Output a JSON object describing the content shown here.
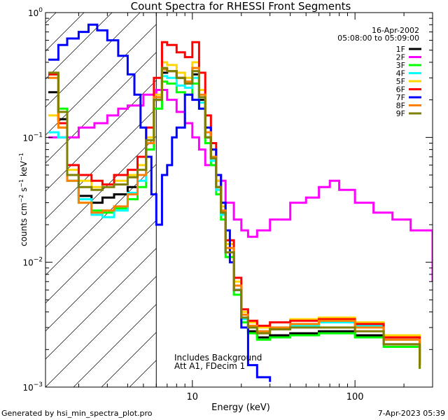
{
  "chart_data": {
    "type": "line",
    "title": "Count Spectra for RHESSI Front Segments",
    "xlabel": "Energy (keV)",
    "ylabel_parts": {
      "base": "counts cm",
      "exp1": "−2",
      "mid": " s",
      "exp2": "−1",
      "tail": " keV",
      "exp3": "−1"
    },
    "x_scale": "log",
    "y_scale": "log",
    "xlim": [
      1.25,
      300
    ],
    "ylim": [
      0.001,
      1.0
    ],
    "x_ticks": [
      {
        "v": 10,
        "label": "10"
      },
      {
        "v": 100,
        "label": "100"
      }
    ],
    "y_ticks": [
      {
        "v": 1.0,
        "mant": "10",
        "exp": "0"
      },
      {
        "v": 0.1,
        "mant": "10",
        "exp": "−1"
      },
      {
        "v": 0.01,
        "mant": "10",
        "exp": "−2"
      },
      {
        "v": 0.001,
        "mant": "10",
        "exp": "−3"
      }
    ],
    "shaded_region": {
      "x_min": 1.25,
      "x_max": 6.0,
      "pattern": "diagonal-hatch"
    },
    "date": "16-Apr-2002",
    "time_range": "05:08:00 to 05:09:00",
    "notes": [
      "Includes Background",
      "Att A1, FDecim  1"
    ],
    "footer_left": "Generated by hsi_min_spectra_plot.pro",
    "footer_right": "7-Apr-2023 05:39",
    "series": [
      {
        "name": "1F",
        "color": "#000000",
        "x": [
          1.3,
          1.5,
          1.7,
          2.0,
          2.4,
          2.8,
          3.3,
          4.0,
          4.6,
          5.2,
          5.8,
          6.5,
          7.0,
          8.0,
          9.0,
          10.0,
          11.0,
          12.0,
          13.0,
          14.0,
          15.0,
          16.0,
          18.0,
          20.0,
          22.0,
          25.0,
          30.0,
          40.0,
          60.0,
          100.0,
          150.0,
          250.0
        ],
        "y": [
          0.23,
          0.14,
          0.05,
          0.034,
          0.03,
          0.033,
          0.035,
          0.04,
          0.05,
          0.09,
          0.2,
          0.33,
          0.34,
          0.3,
          0.28,
          0.32,
          0.2,
          0.1,
          0.07,
          0.04,
          0.025,
          0.012,
          0.006,
          0.0035,
          0.0028,
          0.0025,
          0.0026,
          0.0027,
          0.0028,
          0.0026,
          0.0022,
          0.0015
        ]
      },
      {
        "name": "2F",
        "color": "#ff00ff",
        "x": [
          1.3,
          1.5,
          2.0,
          2.5,
          3.0,
          3.5,
          4.0,
          5.0,
          6.0,
          7.0,
          8.0,
          9.0,
          10.0,
          11.0,
          12.0,
          14.0,
          16.0,
          18.0,
          20.0,
          22.0,
          25.0,
          30.0,
          40.0,
          50.0,
          60.0,
          70.0,
          80.0,
          100.0,
          130.0,
          170.0,
          220.0,
          300.0
        ],
        "y": [
          0.1,
          0.1,
          0.12,
          0.13,
          0.15,
          0.17,
          0.18,
          0.22,
          0.24,
          0.2,
          0.16,
          0.13,
          0.1,
          0.08,
          0.06,
          0.045,
          0.03,
          0.022,
          0.018,
          0.016,
          0.018,
          0.022,
          0.03,
          0.033,
          0.04,
          0.045,
          0.038,
          0.03,
          0.025,
          0.022,
          0.018,
          0.007
        ]
      },
      {
        "name": "3F",
        "color": "#00ff00",
        "x": [
          1.3,
          1.5,
          1.7,
          2.0,
          2.4,
          2.8,
          3.3,
          4.0,
          4.6,
          5.2,
          5.8,
          6.5,
          7.0,
          8.0,
          9.0,
          10.0,
          11.0,
          12.0,
          13.0,
          14.0,
          15.0,
          16.0,
          18.0,
          20.0,
          22.0,
          25.0,
          30.0,
          40.0,
          60.0,
          100.0,
          150.0,
          250.0
        ],
        "y": [
          0.32,
          0.17,
          0.045,
          0.03,
          0.026,
          0.025,
          0.027,
          0.032,
          0.04,
          0.08,
          0.17,
          0.28,
          0.27,
          0.23,
          0.22,
          0.27,
          0.17,
          0.09,
          0.06,
          0.035,
          0.022,
          0.011,
          0.0055,
          0.0033,
          0.0027,
          0.0024,
          0.0025,
          0.0026,
          0.0027,
          0.0025,
          0.0021,
          0.0014
        ]
      },
      {
        "name": "4F",
        "color": "#00ffff",
        "x": [
          1.3,
          1.5,
          1.7,
          2.0,
          2.4,
          2.8,
          3.3,
          4.0,
          4.6,
          5.2,
          5.8,
          6.5,
          7.0,
          8.0,
          9.0,
          10.0,
          11.0,
          12.0,
          13.0,
          14.0,
          15.0,
          16.0,
          18.0,
          20.0,
          22.0,
          25.0,
          30.0,
          40.0,
          60.0,
          100.0,
          150.0,
          250.0
        ],
        "y": [
          0.11,
          0.1,
          0.045,
          0.032,
          0.024,
          0.023,
          0.026,
          0.036,
          0.045,
          0.09,
          0.2,
          0.31,
          0.3,
          0.26,
          0.25,
          0.3,
          0.19,
          0.1,
          0.065,
          0.038,
          0.024,
          0.012,
          0.006,
          0.0035,
          0.003,
          0.0028,
          0.003,
          0.0031,
          0.0033,
          0.0031,
          0.0024,
          0.0016
        ]
      },
      {
        "name": "5F",
        "color": "#ffd700",
        "x": [
          1.3,
          1.5,
          1.7,
          2.0,
          2.4,
          2.8,
          3.3,
          4.0,
          4.6,
          5.2,
          5.8,
          6.5,
          7.0,
          8.0,
          9.0,
          10.0,
          11.0,
          12.0,
          13.0,
          14.0,
          15.0,
          16.0,
          18.0,
          20.0,
          22.0,
          25.0,
          30.0,
          40.0,
          60.0,
          100.0,
          150.0,
          250.0
        ],
        "y": [
          0.15,
          0.12,
          0.055,
          0.045,
          0.04,
          0.042,
          0.045,
          0.05,
          0.06,
          0.1,
          0.22,
          0.4,
          0.38,
          0.33,
          0.3,
          0.4,
          0.24,
          0.12,
          0.08,
          0.045,
          0.028,
          0.014,
          0.007,
          0.004,
          0.0033,
          0.003,
          0.0033,
          0.0035,
          0.0036,
          0.0033,
          0.0026,
          0.0017
        ]
      },
      {
        "name": "6F",
        "color": "#ff0000",
        "x": [
          1.3,
          1.5,
          1.7,
          2.0,
          2.4,
          2.8,
          3.3,
          4.0,
          4.6,
          5.2,
          5.8,
          6.5,
          7.0,
          8.0,
          9.0,
          10.0,
          11.0,
          12.0,
          13.0,
          14.0,
          15.0,
          16.0,
          18.0,
          20.0,
          22.0,
          25.0,
          30.0,
          40.0,
          60.0,
          100.0,
          150.0,
          250.0
        ],
        "y": [
          0.32,
          0.13,
          0.06,
          0.05,
          0.045,
          0.042,
          0.05,
          0.055,
          0.07,
          0.12,
          0.3,
          0.58,
          0.55,
          0.48,
          0.44,
          0.58,
          0.33,
          0.15,
          0.09,
          0.05,
          0.03,
          0.015,
          0.0075,
          0.0042,
          0.0034,
          0.0031,
          0.0033,
          0.0034,
          0.0035,
          0.0032,
          0.0025,
          0.0016
        ]
      },
      {
        "name": "7F",
        "color": "#0000ff",
        "x": [
          1.3,
          1.5,
          1.7,
          2.0,
          2.3,
          2.6,
          3.0,
          3.5,
          4.0,
          4.4,
          4.8,
          5.2,
          5.6,
          6.0,
          6.5,
          7.0,
          7.5,
          8.0,
          9.0,
          10.0,
          11.0,
          12.0,
          13.0,
          14.0,
          15.0,
          16.0,
          17.0,
          18.0,
          20.0,
          22.0,
          25.0,
          30.0
        ],
        "y": [
          0.42,
          0.55,
          0.62,
          0.7,
          0.8,
          0.72,
          0.6,
          0.45,
          0.32,
          0.22,
          0.12,
          0.07,
          0.035,
          0.02,
          0.05,
          0.06,
          0.1,
          0.12,
          0.22,
          0.2,
          0.17,
          0.12,
          0.08,
          0.05,
          0.03,
          0.018,
          0.01,
          0.006,
          0.003,
          0.0015,
          0.0012,
          0.0011
        ]
      },
      {
        "name": "8F",
        "color": "#ff8000",
        "x": [
          1.3,
          1.5,
          1.7,
          2.0,
          2.4,
          2.8,
          3.3,
          4.0,
          4.6,
          5.2,
          5.8,
          6.5,
          7.0,
          8.0,
          9.0,
          10.0,
          11.0,
          12.0,
          13.0,
          14.0,
          15.0,
          16.0,
          18.0,
          20.0,
          22.0,
          25.0,
          30.0,
          40.0,
          60.0,
          100.0,
          150.0,
          250.0
        ],
        "y": [
          0.3,
          0.12,
          0.045,
          0.03,
          0.025,
          0.026,
          0.028,
          0.035,
          0.05,
          0.09,
          0.21,
          0.35,
          0.34,
          0.3,
          0.28,
          0.36,
          0.22,
          0.11,
          0.07,
          0.04,
          0.026,
          0.013,
          0.0065,
          0.0038,
          0.0031,
          0.0028,
          0.003,
          0.0032,
          0.0034,
          0.003,
          0.0024,
          0.0015
        ]
      },
      {
        "name": "9F",
        "color": "#808000",
        "x": [
          1.3,
          1.5,
          1.7,
          2.0,
          2.4,
          2.8,
          3.3,
          4.0,
          4.6,
          5.2,
          5.8,
          6.5,
          7.0,
          8.0,
          9.0,
          10.0,
          11.0,
          12.0,
          13.0,
          14.0,
          15.0,
          16.0,
          18.0,
          20.0,
          22.0,
          25.0,
          30.0,
          40.0,
          60.0,
          100.0,
          150.0,
          250.0
        ],
        "y": [
          0.33,
          0.16,
          0.05,
          0.04,
          0.038,
          0.04,
          0.042,
          0.048,
          0.055,
          0.095,
          0.2,
          0.36,
          0.34,
          0.3,
          0.27,
          0.34,
          0.21,
          0.1,
          0.068,
          0.04,
          0.025,
          0.012,
          0.006,
          0.0036,
          0.003,
          0.0027,
          0.0029,
          0.003,
          0.003,
          0.0028,
          0.0022,
          0.0014
        ]
      }
    ]
  }
}
